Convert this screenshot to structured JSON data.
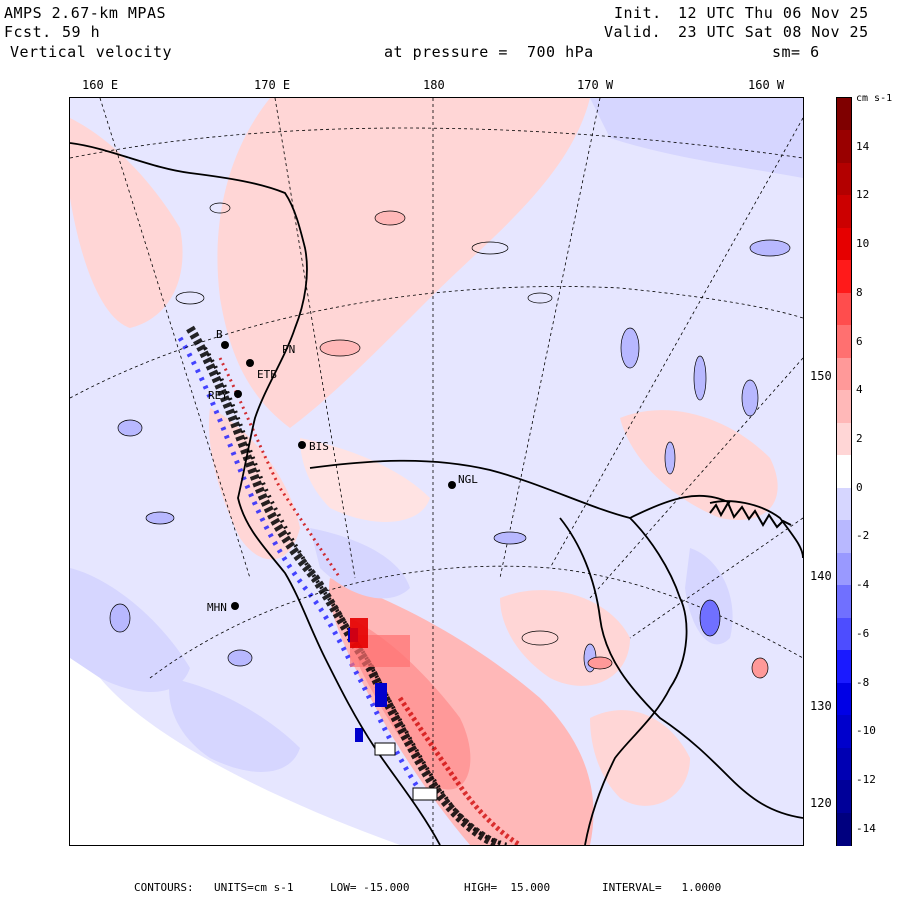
{
  "header": {
    "model_title": "AMPS 2.67-km MPAS",
    "forecast_label": "Fcst.",
    "forecast_hours": "59 h",
    "field_name": "Vertical velocity",
    "init_label": "Init.",
    "init_time": "12 UTC Thu 06 Nov 25",
    "valid_label": "Valid.",
    "valid_time": "23 UTC Sat 08 Nov 25",
    "pressure_text": "at pressure =  700 hPa",
    "smoothing_text": "sm= 6"
  },
  "map": {
    "top_longitude_labels": [
      "160 E",
      "170 E",
      "180",
      "170 W",
      "160 W"
    ],
    "right_longitude_labels": [
      "150 W",
      "140 W",
      "130 W",
      "120 W"
    ],
    "stations": [
      "BIS",
      "NGL",
      "REY",
      "MHN",
      "B",
      "ETB",
      "PN"
    ]
  },
  "colorbar": {
    "units": "cm s-1",
    "tick_labels": [
      "14",
      "12",
      "10",
      "8",
      "6",
      "4",
      "2",
      "0",
      "-2",
      "-4",
      "-6",
      "-8",
      "-10",
      "-12",
      "-14"
    ],
    "colors": [
      "#7f0000",
      "#990000",
      "#b30000",
      "#cc0000",
      "#e60000",
      "#ff1a1a",
      "#ff4d4d",
      "#ff7070",
      "#ff9999",
      "#ffb8b8",
      "#ffd6d6",
      "#ffffff",
      "#d6d6ff",
      "#b8b8ff",
      "#9999ff",
      "#7070ff",
      "#4d4dff",
      "#1a1aff",
      "#0000e6",
      "#0000cc",
      "#0000b3",
      "#000099",
      "#00007f"
    ]
  },
  "footer": {
    "contours_label": "CONTOURS:",
    "units_text": "UNITS=cm s-1",
    "low_text": "LOW= -15.000",
    "high_text": "HIGH=  15.000",
    "interval_text": "INTERVAL=   1.0000"
  }
}
